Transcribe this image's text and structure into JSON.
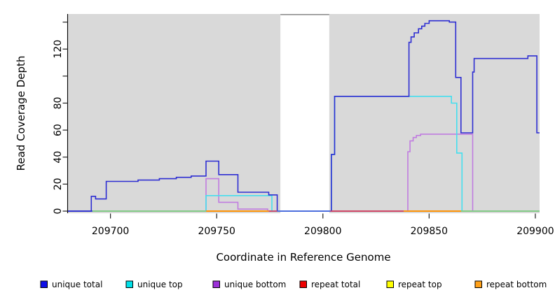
{
  "figure": {
    "x_axis_title": "Coordinate in Reference Genome",
    "y_axis_title": "Read Coverage Depth"
  },
  "chart_data": {
    "type": "line",
    "subtype": "step-coverage-plot",
    "title": "",
    "xlabel": "Coordinate in Reference Genome",
    "ylabel": "Read Coverage Depth",
    "xlim": [
      209680,
      209902
    ],
    "ylim": [
      0,
      146
    ],
    "grid": "off",
    "panel_bg": "#d9d9d9",
    "x_ticks": [
      {
        "value": 209700,
        "label": "209700"
      },
      {
        "value": 209750,
        "label": "209750"
      },
      {
        "value": 209800,
        "label": "209800"
      },
      {
        "value": 209850,
        "label": "209850"
      },
      {
        "value": 209900,
        "label": "209900"
      }
    ],
    "y_ticks": [
      {
        "value": 0,
        "label": "0"
      },
      {
        "value": 20,
        "label": "20"
      },
      {
        "value": 40,
        "label": "40"
      },
      {
        "value": 60,
        "label": "60"
      },
      {
        "value": 80,
        "label": "80"
      },
      {
        "value": 100,
        "label": ""
      },
      {
        "value": 120,
        "label": "120"
      },
      {
        "value": 140,
        "label": ""
      }
    ],
    "masked_region": {
      "from": 209780,
      "to": 209803,
      "color": "#ffffff",
      "top_line_color": "#8f8f8f"
    },
    "series": [
      {
        "name": "unique total",
        "color": "#0f0fe8",
        "line_color": "#2d2dd2",
        "steps": [
          [
            209680,
            0
          ],
          [
            209691,
            11
          ],
          [
            209693,
            9
          ],
          [
            209698,
            22
          ],
          [
            209713,
            23
          ],
          [
            209723,
            24
          ],
          [
            209731,
            25
          ],
          [
            209738,
            26
          ],
          [
            209745,
            37
          ],
          [
            209751,
            27
          ],
          [
            209760,
            14
          ],
          [
            209774.5,
            12
          ],
          [
            209778.5,
            0
          ],
          [
            209804,
            42
          ],
          [
            209805.5,
            85
          ],
          [
            209840.5,
            125
          ],
          [
            209841.5,
            129
          ],
          [
            209843,
            132
          ],
          [
            209845,
            135
          ],
          [
            209846.5,
            137
          ],
          [
            209848,
            139
          ],
          [
            209850,
            141
          ],
          [
            209859.5,
            140
          ],
          [
            209862.5,
            99
          ],
          [
            209865,
            58
          ],
          [
            209870.5,
            103
          ],
          [
            209871.2,
            113
          ],
          [
            209896.5,
            115
          ],
          [
            209900.7,
            58
          ]
        ]
      },
      {
        "name": "unique top",
        "color": "#00e0e8",
        "line_color": "#44dfee",
        "steps": [
          [
            209680,
            0
          ],
          [
            209745,
            11.5
          ],
          [
            209776,
            0
          ],
          [
            209804,
            42
          ],
          [
            209805.5,
            85
          ],
          [
            209860.5,
            80
          ],
          [
            209863,
            43
          ],
          [
            209865.5,
            0
          ]
        ]
      },
      {
        "name": "unique bottom",
        "color": "#9b30d8",
        "line_color": "#c07ce0",
        "steps": [
          [
            209680,
            0
          ],
          [
            209745,
            24
          ],
          [
            209751,
            6.5
          ],
          [
            209760,
            1.5
          ],
          [
            209774,
            0
          ],
          [
            209840,
            44
          ],
          [
            209841,
            52
          ],
          [
            209842.5,
            54.5
          ],
          [
            209844,
            56
          ],
          [
            209846,
            57
          ],
          [
            209870.5,
            0
          ]
        ]
      },
      {
        "name": "repeat total",
        "color": "#ee0000",
        "line_color": "#cc3a62",
        "steps": [
          [
            209680,
            0
          ]
        ]
      },
      {
        "name": "repeat top",
        "color": "#ffff00",
        "line_color": "#ffff00",
        "steps": [
          [
            209680,
            0
          ]
        ]
      },
      {
        "name": "repeat bottom",
        "color": "#ffa018",
        "line_color": "#ff8f00",
        "steps": [
          [
            209680,
            0
          ]
        ]
      }
    ],
    "zero_line_segments": [
      {
        "from": 209680,
        "to": 209691.5,
        "color": "#2d2dd2"
      },
      {
        "from": 209691.5,
        "to": 209745,
        "color": "#7fcc7f"
      },
      {
        "from": 209745,
        "to": 209774.5,
        "color": "#ff8f00"
      },
      {
        "from": 209774.5,
        "to": 209778.5,
        "color": "#cc3a62"
      },
      {
        "from": 209778.5,
        "to": 209803.5,
        "color": "#4a6de0"
      },
      {
        "from": 209803.5,
        "to": 209838,
        "color": "#cc3a62"
      },
      {
        "from": 209838,
        "to": 209865,
        "color": "#ff8f00"
      },
      {
        "from": 209865,
        "to": 209902,
        "color": "#7fcc7f"
      }
    ],
    "legend": {
      "position": "bottom",
      "items": [
        {
          "label": "unique total",
          "color": "#0f0fe8"
        },
        {
          "label": "unique top",
          "color": "#00e0e8"
        },
        {
          "label": "unique bottom",
          "color": "#9b30d8"
        },
        {
          "label": "repeat total",
          "color": "#ee0000"
        },
        {
          "label": "repeat top",
          "color": "#ffff00"
        },
        {
          "label": "repeat bottom",
          "color": "#ffa018"
        }
      ]
    }
  }
}
